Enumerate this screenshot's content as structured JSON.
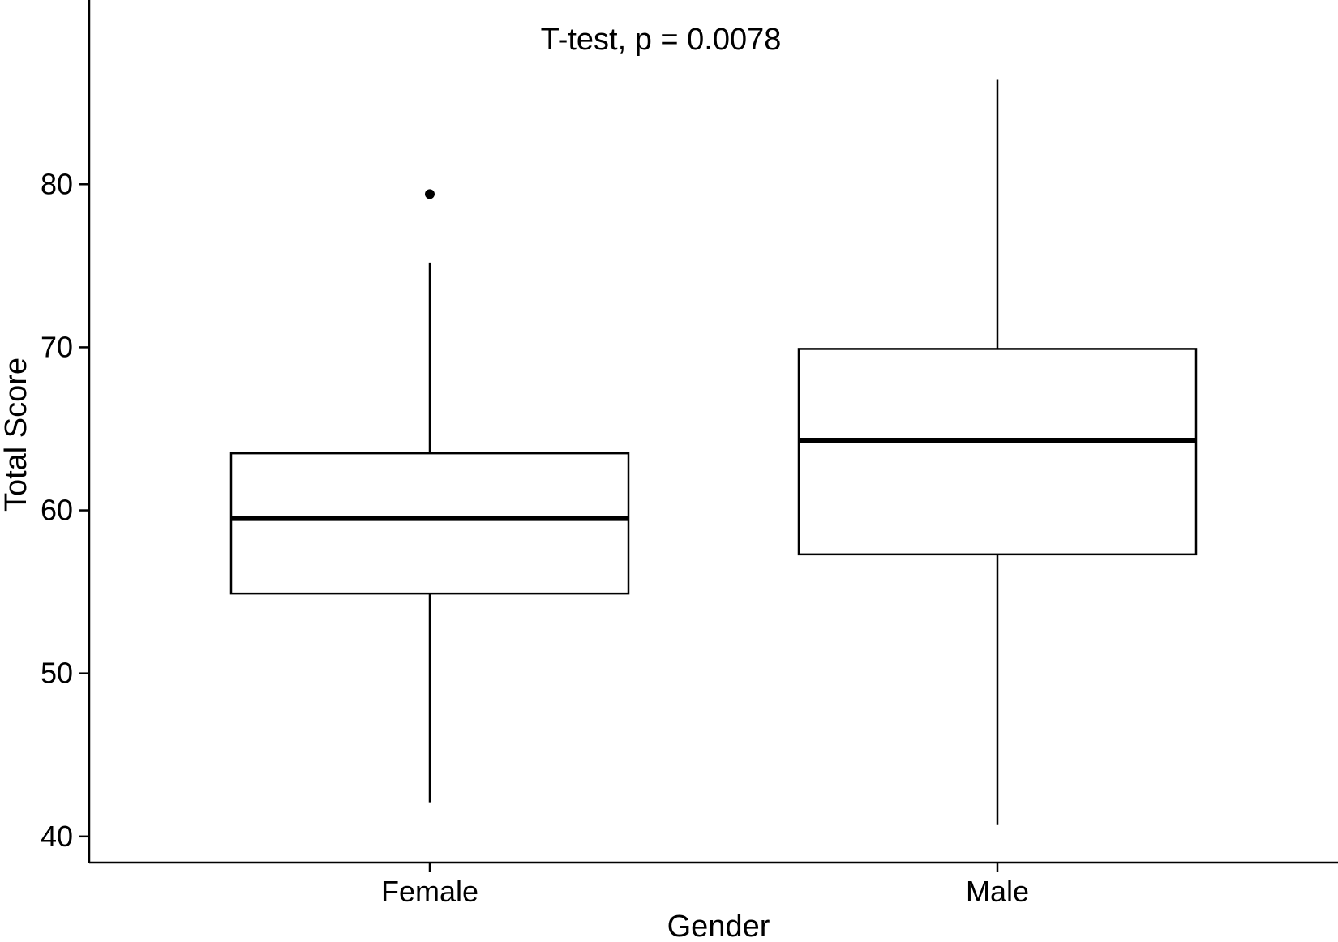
{
  "chart_data": {
    "type": "boxplot",
    "title": "",
    "annotation": "T-test, p = 0.0078",
    "xlabel": "Gender",
    "ylabel": "Total Score",
    "categories": [
      "Female",
      "Male"
    ],
    "ylim": [
      38.4,
      91.3
    ],
    "yticks": [
      40,
      50,
      60,
      70,
      80
    ],
    "ytick_labels": [
      "40",
      "50",
      "60",
      "70",
      "80"
    ],
    "grid": false,
    "legend": "none",
    "boxes": [
      {
        "category": "Female",
        "whisker_low": 42.1,
        "q1": 54.9,
        "median": 59.5,
        "q3": 63.5,
        "whisker_high": 75.2,
        "outliers": [
          79.4
        ]
      },
      {
        "category": "Male",
        "whisker_low": 40.7,
        "q1": 57.3,
        "median": 64.3,
        "q3": 69.9,
        "whisker_high": 86.4,
        "outliers": []
      }
    ],
    "colors": {
      "box_fill": "#ffffff",
      "stroke": "#000000"
    }
  }
}
